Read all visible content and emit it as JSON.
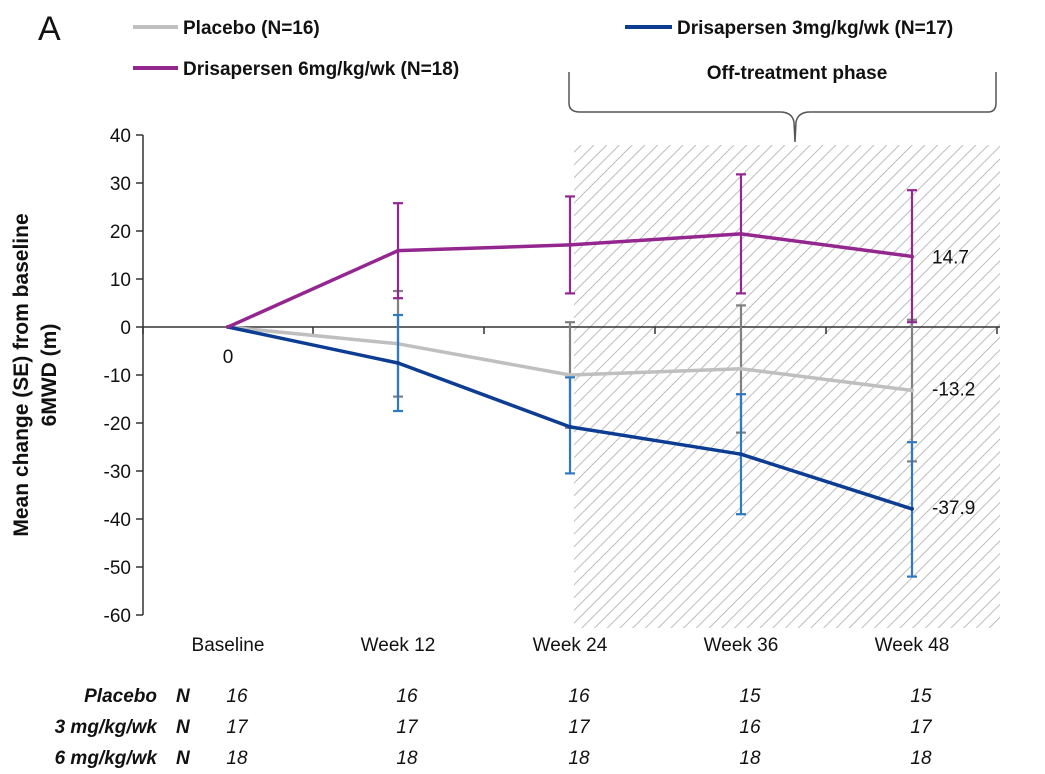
{
  "panel_label": "A",
  "chart_data": {
    "type": "line",
    "categories": [
      "Baseline",
      "Week 12",
      "Week 24",
      "Week 36",
      "Week 48"
    ],
    "ylabel_line1": "Mean change (SE) from baseline",
    "ylabel_line2": "6MWD (m)",
    "ylim": [
      -60,
      40
    ],
    "yticks": [
      40,
      30,
      20,
      10,
      0,
      -10,
      -20,
      -30,
      -40,
      -50,
      -60
    ],
    "zero_label": "0",
    "shaded_region": {
      "label": "Off-treatment phase",
      "from_category": "Week 24",
      "to_category": "Week 48"
    },
    "series": [
      {
        "name": "Placebo (N=16)",
        "short": "placebo",
        "color": "#bfbfbf",
        "errcolor": "#808080",
        "values": [
          0,
          -3.5,
          -10,
          -8.7,
          -13.2
        ],
        "se_low": [
          null,
          -14.5,
          -21,
          -22,
          -28
        ],
        "se_high": [
          null,
          7.5,
          1,
          4.5,
          1.5
        ],
        "end_label": "-13.2"
      },
      {
        "name": "Drisapersen 3mg/kg/wk (N=17)",
        "short": "drisapersen-3mg",
        "color": "#0d3c93",
        "errcolor": "#2f78c4",
        "values": [
          0,
          -7.5,
          -20.8,
          -26.5,
          -37.9
        ],
        "se_low": [
          null,
          -17.5,
          -30.5,
          -39,
          -52
        ],
        "se_high": [
          null,
          2.5,
          -10.5,
          -14,
          -24
        ],
        "end_label": "-37.9"
      },
      {
        "name": "Drisapersen 6mg/kg/wk (N=18)",
        "short": "drisapersen-6mg",
        "color": "#94278f",
        "errcolor": "#94278f",
        "values": [
          0,
          15.9,
          17.1,
          19.4,
          14.7
        ],
        "se_low": [
          null,
          6,
          7,
          7,
          1
        ],
        "se_high": [
          null,
          25.8,
          27.2,
          31.8,
          28.5
        ],
        "end_label": "14.7"
      }
    ]
  },
  "n_table": {
    "n_header": "N",
    "rows": [
      {
        "label": "Placebo",
        "values": [
          "16",
          "16",
          "16",
          "15",
          "15"
        ]
      },
      {
        "label": "3 mg/kg/wk",
        "values": [
          "17",
          "17",
          "17",
          "16",
          "17"
        ]
      },
      {
        "label": "6 mg/kg/wk",
        "values": [
          "18",
          "18",
          "18",
          "18",
          "18"
        ]
      }
    ]
  }
}
